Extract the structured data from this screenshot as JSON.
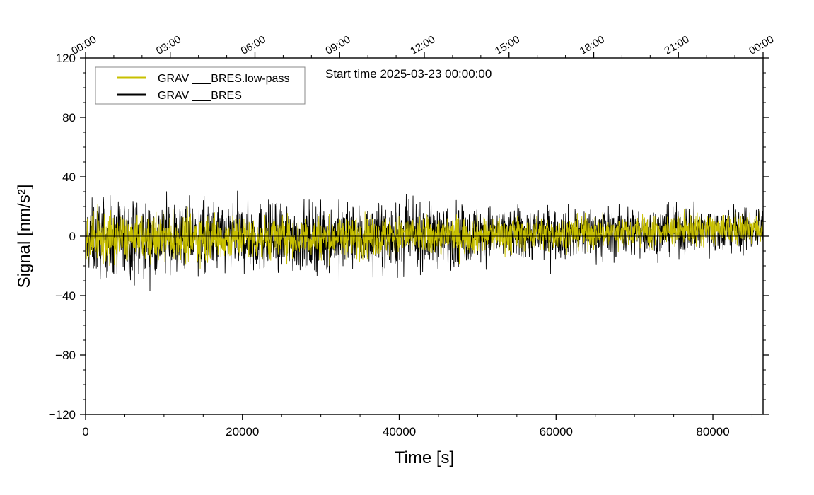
{
  "chart_data": {
    "type": "line",
    "title": "",
    "xlabel": "Time [s]",
    "ylabel": "Signal [nm/s²]",
    "xlim": [
      0,
      86400
    ],
    "ylim": [
      -120,
      120
    ],
    "x_ticks": [
      0,
      20000,
      40000,
      60000,
      80000
    ],
    "x_tick_labels": [
      "0",
      "20000",
      "40000",
      "60000",
      "80000"
    ],
    "y_ticks": [
      -120,
      -80,
      -40,
      0,
      40,
      80,
      120
    ],
    "y_tick_labels": [
      "−120",
      "−80",
      "−40",
      "0",
      "40",
      "80",
      "120"
    ],
    "top_axis": {
      "tick_values": [
        0,
        10800,
        21600,
        32400,
        43200,
        54000,
        64800,
        75600,
        86400
      ],
      "tick_labels": [
        "00:00",
        "03:00",
        "06:00",
        "09:00",
        "12:00",
        "15:00",
        "18:00",
        "21:00",
        "00:00"
      ]
    },
    "annotation": "Start time 2025-03-23 00:00:00",
    "grid": false,
    "legend_position": "top-left",
    "series": [
      {
        "name": "GRAV ___BRES",
        "color": "#000000",
        "style": "noise-band",
        "envelope": {
          "x": [
            0,
            20000,
            40000,
            60000,
            86400
          ],
          "mean": [
            -2,
            -1,
            0,
            2,
            5
          ],
          "amplitude": [
            20,
            19,
            17,
            14,
            12
          ]
        }
      },
      {
        "name": "GRAV ___BRES.low-pass",
        "color": "#c8c000",
        "style": "noise-band",
        "envelope": {
          "x": [
            0,
            20000,
            40000,
            60000,
            86400
          ],
          "mean": [
            -2,
            -1,
            0,
            2,
            5
          ],
          "amplitude": [
            14,
            12,
            11,
            9,
            8
          ]
        }
      }
    ],
    "legend_order": [
      "GRAV ___BRES.low-pass",
      "GRAV ___BRES"
    ]
  }
}
